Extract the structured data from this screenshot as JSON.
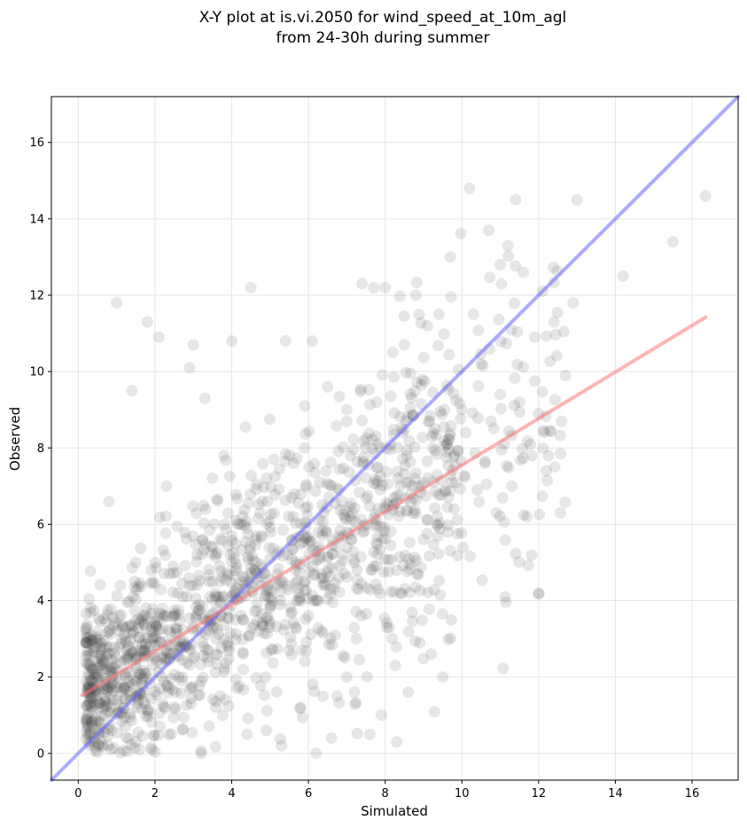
{
  "chart_data": {
    "type": "scatter",
    "title": "X-Y plot at is.vi.2050 for wind_speed_at_10m_agl",
    "subtitle": "from 24-30h during summer",
    "xlabel": "Simulated",
    "ylabel": "Observed",
    "xlim": [
      -0.7,
      17.2
    ],
    "ylim": [
      -0.7,
      17.2
    ],
    "xticks": [
      0,
      2,
      4,
      6,
      8,
      10,
      12,
      14,
      16
    ],
    "yticks": [
      0,
      2,
      4,
      6,
      8,
      10,
      12,
      14,
      16
    ],
    "grid": true,
    "point_color": "#404040",
    "point_opacity": 0.13,
    "lines": [
      {
        "kind": "identity",
        "color": "#6666ff",
        "x": [
          -0.7,
          17.2
        ],
        "y": [
          -0.7,
          17.2
        ]
      },
      {
        "kind": "regression",
        "color": "#ff7777",
        "x": [
          0.1,
          16.35
        ],
        "y": [
          1.52,
          11.42
        ]
      }
    ],
    "points": [
      [
        0.5,
        3.2
      ],
      [
        0.6,
        2.3
      ],
      [
        0.7,
        1.8
      ],
      [
        0.8,
        6.6
      ],
      [
        0.9,
        2.1
      ],
      [
        1.0,
        1.4
      ],
      [
        1.0,
        11.8
      ],
      [
        1.1,
        4.4
      ],
      [
        1.2,
        3.1
      ],
      [
        1.3,
        2.5
      ],
      [
        1.4,
        9.5
      ],
      [
        1.5,
        5.0
      ],
      [
        1.6,
        1.6
      ],
      [
        1.7,
        2.0
      ],
      [
        1.8,
        11.3
      ],
      [
        1.9,
        4.8
      ],
      [
        2.0,
        2.5
      ],
      [
        2.0,
        3.4
      ],
      [
        2.1,
        10.9
      ],
      [
        2.2,
        1.3
      ],
      [
        2.3,
        7.0
      ],
      [
        2.4,
        2.6
      ],
      [
        2.5,
        3.6
      ],
      [
        2.6,
        4.2
      ],
      [
        2.7,
        1.9
      ],
      [
        2.8,
        2.8
      ],
      [
        2.9,
        10.1
      ],
      [
        3.0,
        10.7
      ],
      [
        3.0,
        3.3
      ],
      [
        3.1,
        5.2
      ],
      [
        3.2,
        0.0
      ],
      [
        3.3,
        9.3
      ],
      [
        3.4,
        2.4
      ],
      [
        3.5,
        4.5
      ],
      [
        3.6,
        3.0
      ],
      [
        3.7,
        1.5
      ],
      [
        3.8,
        7.8
      ],
      [
        3.9,
        2.9
      ],
      [
        4.0,
        10.8
      ],
      [
        4.0,
        4.1
      ],
      [
        4.1,
        3.5
      ],
      [
        4.2,
        6.0
      ],
      [
        4.3,
        2.2
      ],
      [
        4.4,
        0.5
      ],
      [
        4.5,
        12.2
      ],
      [
        4.6,
        4.8
      ],
      [
        4.7,
        3.2
      ],
      [
        4.8,
        6.6
      ],
      [
        4.9,
        0.6
      ],
      [
        5.0,
        5.1
      ],
      [
        5.0,
        3.8
      ],
      [
        5.1,
        7.7
      ],
      [
        5.2,
        4.4
      ],
      [
        5.3,
        0.2
      ],
      [
        5.4,
        10.8
      ],
      [
        5.5,
        2.7
      ],
      [
        5.6,
        6.2
      ],
      [
        5.7,
        4.0
      ],
      [
        5.8,
        1.2
      ],
      [
        5.9,
        8.0
      ],
      [
        6.0,
        5.5
      ],
      [
        6.0,
        3.6
      ],
      [
        6.1,
        10.8
      ],
      [
        6.2,
        0.0
      ],
      [
        6.3,
        7.1
      ],
      [
        6.4,
        4.6
      ],
      [
        6.5,
        9.6
      ],
      [
        6.6,
        0.4
      ],
      [
        6.7,
        3.1
      ],
      [
        6.8,
        6.9
      ],
      [
        6.9,
        5.2
      ],
      [
        7.0,
        9.0
      ],
      [
        7.0,
        2.0
      ],
      [
        7.1,
        7.8
      ],
      [
        7.2,
        1.6
      ],
      [
        7.3,
        4.3
      ],
      [
        7.4,
        12.3
      ],
      [
        7.5,
        6.0
      ],
      [
        7.6,
        0.5
      ],
      [
        7.7,
        4.9
      ],
      [
        7.8,
        8.1
      ],
      [
        7.9,
        1.0
      ],
      [
        8.0,
        12.2
      ],
      [
        8.0,
        6.4
      ],
      [
        8.1,
        3.3
      ],
      [
        8.2,
        10.5
      ],
      [
        8.3,
        0.3
      ],
      [
        8.4,
        4.2
      ],
      [
        8.5,
        10.7
      ],
      [
        8.6,
        1.6
      ],
      [
        8.7,
        7.0
      ],
      [
        8.8,
        12.0
      ],
      [
        8.9,
        2.9
      ],
      [
        9.0,
        5.6
      ],
      [
        9.1,
        11.2
      ],
      [
        9.2,
        2.6
      ],
      [
        9.3,
        8.5
      ],
      [
        9.4,
        11.5
      ],
      [
        9.5,
        2.0
      ],
      [
        9.6,
        7.9
      ],
      [
        9.7,
        13.0
      ],
      [
        9.8,
        6.4
      ],
      [
        10.0,
        9.0
      ],
      [
        10.1,
        8.4
      ],
      [
        10.2,
        14.8
      ],
      [
        10.3,
        11.5
      ],
      [
        10.4,
        6.9
      ],
      [
        10.5,
        10.2
      ],
      [
        10.6,
        7.6
      ],
      [
        10.7,
        13.7
      ],
      [
        10.9,
        6.3
      ],
      [
        11.0,
        12.8
      ],
      [
        11.0,
        9.4
      ],
      [
        11.1,
        8.1
      ],
      [
        11.2,
        13.3
      ],
      [
        11.3,
        7.0
      ],
      [
        11.4,
        14.5
      ],
      [
        11.5,
        9.2
      ],
      [
        11.6,
        12.6
      ],
      [
        11.7,
        6.2
      ],
      [
        11.9,
        10.9
      ],
      [
        12.0,
        8.9
      ],
      [
        12.1,
        12.1
      ],
      [
        12.2,
        7.4
      ],
      [
        12.4,
        11.3
      ],
      [
        12.6,
        8.7
      ],
      [
        12.7,
        9.9
      ],
      [
        12.9,
        11.8
      ],
      [
        13.0,
        14.5
      ],
      [
        14.2,
        12.5
      ],
      [
        15.5,
        13.4
      ],
      [
        16.35,
        14.6
      ]
    ]
  }
}
